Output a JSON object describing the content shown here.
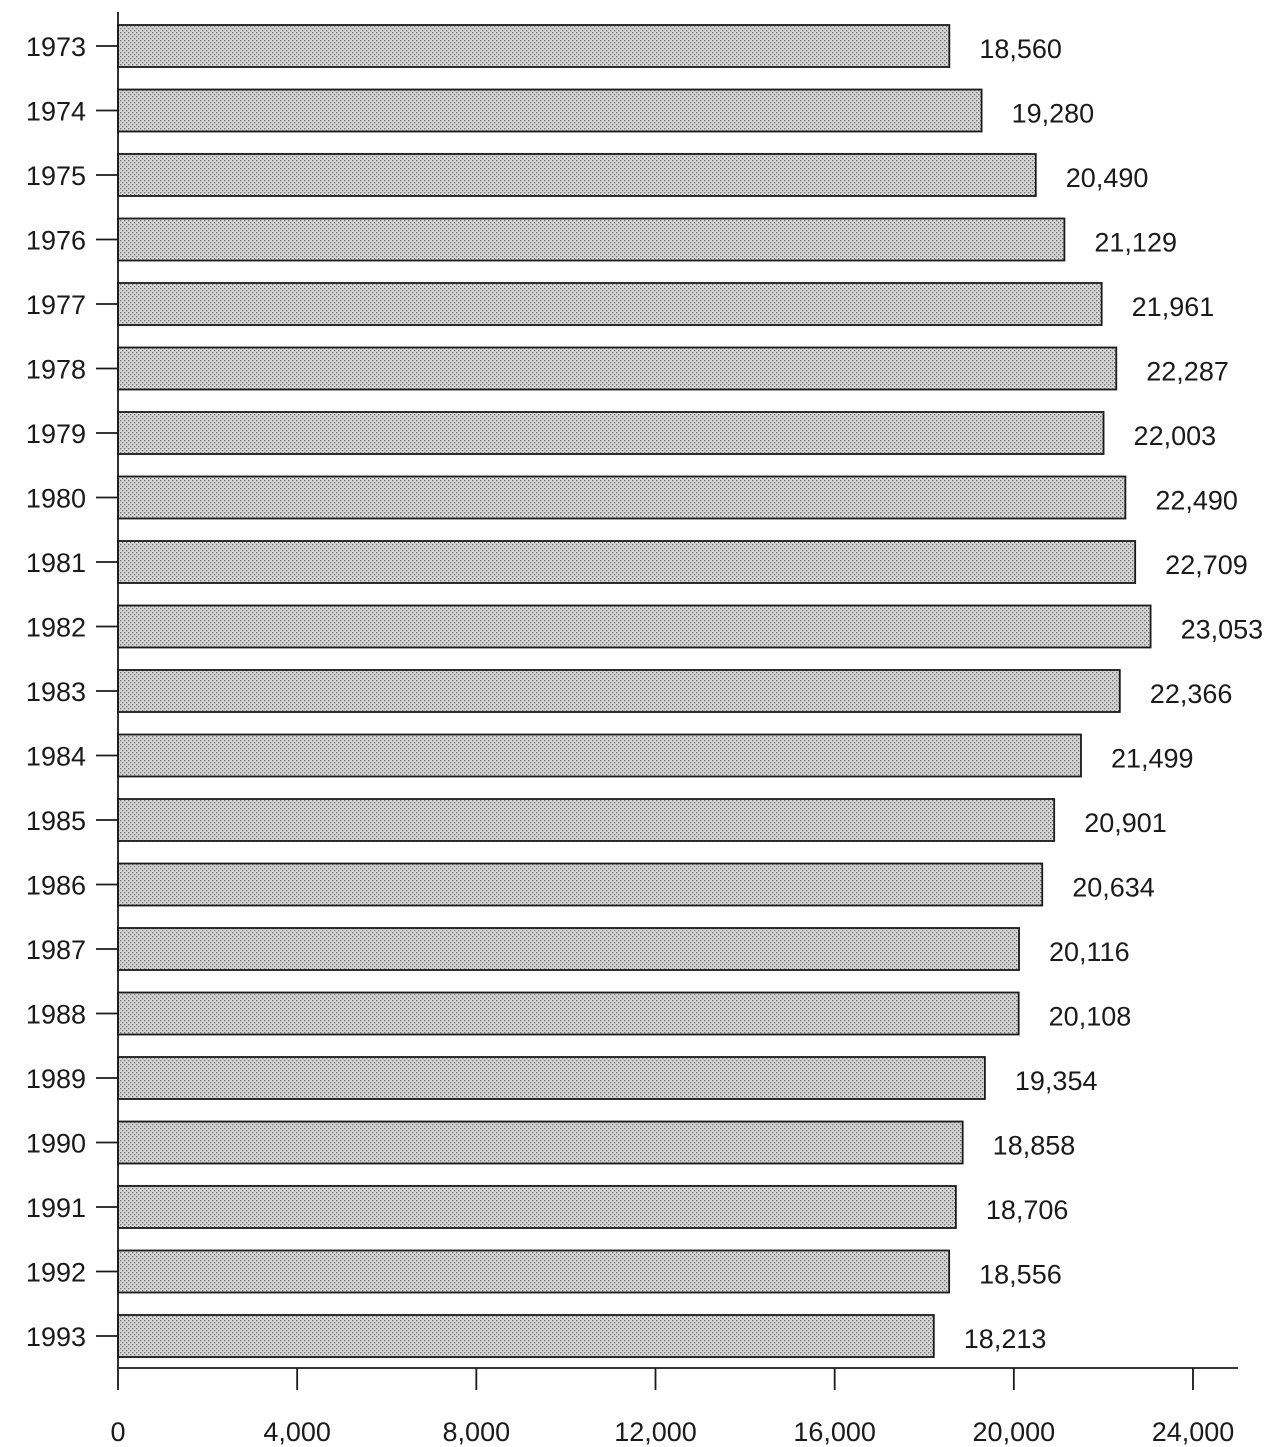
{
  "chart_data": {
    "type": "bar",
    "orientation": "horizontal",
    "categories": [
      "1973",
      "1974",
      "1975",
      "1976",
      "1977",
      "1978",
      "1979",
      "1980",
      "1981",
      "1982",
      "1983",
      "1984",
      "1985",
      "1986",
      "1987",
      "1988",
      "1989",
      "1990",
      "1991",
      "1992",
      "1993"
    ],
    "values": [
      18560,
      19280,
      20490,
      21129,
      21961,
      22287,
      22003,
      22490,
      22709,
      23053,
      22366,
      21499,
      20901,
      20634,
      20116,
      20108,
      19354,
      18858,
      18706,
      18556,
      18213
    ],
    "value_labels": [
      "18,560",
      "19,280",
      "20,490",
      "21,129",
      "21,961",
      "22,287",
      "22,003",
      "22,490",
      "22,709",
      "23,053",
      "22,366",
      "21,499",
      "20,901",
      "20,634",
      "20,116",
      "20,108",
      "19,354",
      "18,858",
      "18,706",
      "18,556",
      "18,213"
    ],
    "x_ticks": [
      0,
      4000,
      8000,
      12000,
      16000,
      20000,
      24000
    ],
    "x_tick_labels": [
      "0",
      "4,000",
      "8,000",
      "12,000",
      "16,000",
      "20,000",
      "24,000"
    ],
    "xlim": [
      0,
      24000
    ],
    "title": "",
    "xlabel": "",
    "ylabel": "",
    "grid": false,
    "bar_fill": "stippled-gray"
  }
}
